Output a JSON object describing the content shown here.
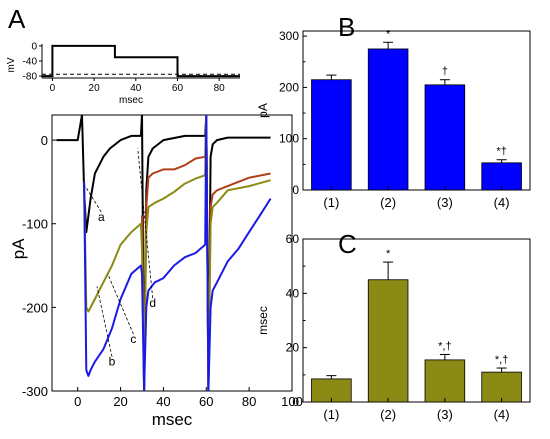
{
  "panels": {
    "A": {
      "letter": "A"
    },
    "B": {
      "letter": "B"
    },
    "C": {
      "letter": "C"
    }
  },
  "colors": {
    "trace_a": "#000000",
    "trace_b": "#1a1ae6",
    "trace_c": "#8a8a14",
    "trace_d": "#b0401a",
    "bar_B": "#0000ff",
    "bar_C": "#8a8a14"
  },
  "chart_data": [
    {
      "id": "A-inset",
      "type": "line",
      "title": "",
      "xlabel": "msec",
      "ylabel": "mV",
      "xlim": [
        -5,
        90
      ],
      "ylim": [
        -85,
        5
      ],
      "xticks": [
        0,
        20,
        40,
        60,
        80
      ],
      "yticks": [
        0,
        -40,
        -80
      ],
      "series": [
        {
          "values_x": [
            -5,
            0,
            0,
            30,
            30,
            60,
            60,
            90
          ],
          "values_y": [
            -80,
            -80,
            0,
            0,
            -30,
            -30,
            -80,
            -80
          ]
        },
        {
          "values_x": [
            -5,
            90
          ],
          "values_y": [
            -75,
            -75
          ],
          "style": "dashed"
        }
      ]
    },
    {
      "id": "A-main",
      "type": "line",
      "title": "",
      "xlabel": "msec",
      "ylabel": "pA",
      "xlim": [
        -12,
        100
      ],
      "ylim": [
        -300,
        30
      ],
      "xticks": [
        0,
        20,
        40,
        60,
        80,
        100
      ],
      "yticks": [
        0,
        -100,
        -200,
        -300
      ],
      "series_labels": [
        "a",
        "b",
        "c",
        "d"
      ],
      "series": [
        {
          "label": "a",
          "color": "#000000",
          "x": [
            -10,
            0,
            2,
            3,
            4,
            6,
            8,
            12,
            15,
            20,
            25,
            29.5,
            30,
            31,
            32,
            33,
            35,
            40,
            50,
            59.5,
            60,
            61,
            62,
            63,
            65,
            70,
            80,
            90
          ],
          "y": [
            0,
            0,
            30,
            -60,
            -110,
            -70,
            -40,
            -20,
            -10,
            0,
            5,
            5,
            30,
            -300,
            -60,
            -20,
            -10,
            0,
            5,
            5,
            30,
            -300,
            -20,
            -5,
            0,
            3,
            3,
            3
          ]
        },
        {
          "label": "d",
          "color": "#b0401a",
          "x": [
            30,
            31,
            32,
            33,
            35,
            40,
            45,
            50,
            55,
            59.5,
            60,
            61,
            62,
            63,
            65,
            70,
            80,
            90
          ],
          "y": [
            -90,
            -300,
            -80,
            -45,
            -40,
            -35,
            -35,
            -30,
            -22,
            -20,
            30,
            -300,
            -80,
            -65,
            -60,
            -55,
            -45,
            -40
          ]
        },
        {
          "label": "c",
          "color": "#8a8a14",
          "x": [
            3,
            4,
            5,
            6,
            8,
            12,
            16,
            20,
            25,
            29.5,
            30,
            31,
            32,
            33,
            36,
            40,
            45,
            50,
            55,
            59.5,
            60,
            61,
            62,
            63,
            65,
            70,
            80,
            90
          ],
          "y": [
            -50,
            -200,
            -205,
            -200,
            -190,
            -170,
            -150,
            -125,
            -110,
            -100,
            -130,
            -300,
            -110,
            -80,
            -75,
            -70,
            -62,
            -52,
            -46,
            -42,
            30,
            -300,
            -100,
            -80,
            -75,
            -60,
            -55,
            -48
          ]
        },
        {
          "label": "b",
          "color": "#1a1ae6",
          "x": [
            3,
            4,
            5,
            6,
            8,
            12,
            16,
            20,
            25,
            29.5,
            30,
            31,
            32,
            33,
            36,
            40,
            45,
            50,
            55,
            59.5,
            60,
            61,
            62,
            63,
            65,
            70,
            75,
            80,
            85,
            90
          ],
          "y": [
            -50,
            -275,
            -282,
            -275,
            -265,
            -250,
            -225,
            -190,
            -160,
            -150,
            -160,
            -300,
            -200,
            -180,
            -170,
            -165,
            -150,
            -140,
            -135,
            -125,
            30,
            -300,
            -200,
            -180,
            -170,
            -145,
            -130,
            -110,
            -90,
            -70
          ]
        }
      ]
    },
    {
      "id": "B",
      "type": "bar",
      "title": "",
      "xlabel": "",
      "ylabel": "pA",
      "ylim": [
        0,
        310
      ],
      "yticks": [
        0,
        100,
        200,
        300
      ],
      "categories": [
        "(1)",
        "(2)",
        "(3)",
        "(4)"
      ],
      "values": [
        215,
        275,
        205,
        53
      ],
      "errors": [
        9,
        13,
        10,
        6
      ],
      "markers": [
        "",
        "*",
        "†",
        "*†"
      ]
    },
    {
      "id": "C",
      "type": "bar",
      "title": "",
      "xlabel": "",
      "ylabel": "msec",
      "ylim": [
        0,
        60
      ],
      "yticks": [
        0,
        20,
        40,
        60
      ],
      "categories": [
        "(1)",
        "(2)",
        "(3)",
        "(4)"
      ],
      "values": [
        8.5,
        45,
        15.5,
        11
      ],
      "errors": [
        1.2,
        6.5,
        2.0,
        1.5
      ],
      "markers": [
        "",
        "*",
        "*,†",
        "*,†"
      ]
    }
  ]
}
